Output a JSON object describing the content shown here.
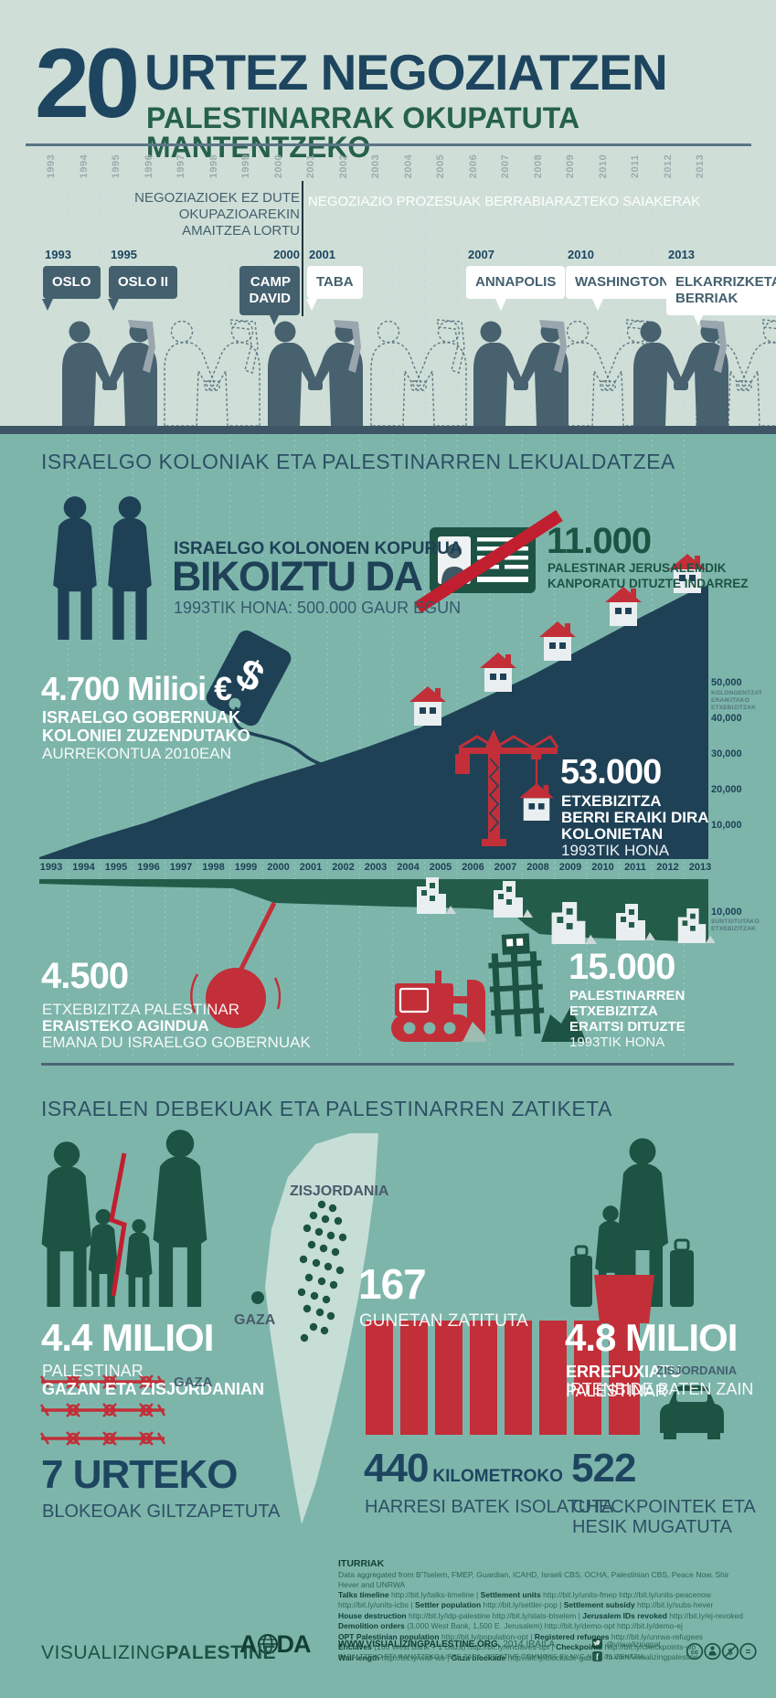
{
  "colors": {
    "bg_top": "#cfdfd7",
    "bg_teal": "#7db5ab",
    "navy": "#1e4156",
    "navy_text": "#1e4560",
    "slate": "#44606f",
    "green_dark": "#1d5343",
    "green_head": "#26614b",
    "red": "#c22f38",
    "map_light": "#c6ded6",
    "dash_blue": "#a6d8e3",
    "white": "#ffffff"
  },
  "header": {
    "number": "20",
    "title": "URTEZ NEGOZIATZEN",
    "subtitle": "PALESTINARRAK OKUPATUTA MANTENTZEKO"
  },
  "timeline": {
    "years": [
      "1993",
      "1994",
      "1995",
      "1996",
      "1997",
      "1998",
      "1999",
      "2000",
      "2001",
      "2002",
      "2003",
      "2004",
      "2005",
      "2006",
      "2007",
      "2008",
      "2009",
      "2010",
      "2011",
      "2012",
      "2013"
    ],
    "left_caption": "NEGOZIAZIOEK EZ DUTE OKUPAZIOAREKIN\nAMAITZEA LORTU",
    "right_caption": "NEGOZIAZIO PROZESUAK BERRABIARAZTEKO SAIAKERAK",
    "events": [
      {
        "year": "1993",
        "label": "OSLO",
        "theme": "dark"
      },
      {
        "year": "1995",
        "label": "OSLO II",
        "theme": "dark"
      },
      {
        "year": "2000",
        "label": "CAMP\nDAVID",
        "theme": "dark"
      },
      {
        "year": "2001",
        "label": "TABA",
        "theme": "light"
      },
      {
        "year": "2007",
        "label": "ANNAPOLIS",
        "theme": "light"
      },
      {
        "year": "2010",
        "label": "WASHINGTON",
        "theme": "light"
      },
      {
        "year": "2013",
        "label": "ELKARRIZKETA\nBERRIAK",
        "theme": "light"
      }
    ]
  },
  "section_settlements": {
    "heading": "ISRAELGO KOLONIAK ETA PALESTINARREN LEKUALDATZEA",
    "doubled": {
      "kicker": "ISRAELGO KOLONOEN KOPURUA",
      "big": "BIKOIZTU DA",
      "sub": "1993TIK HONA: 500.000 GAUR EGUN"
    },
    "ids": {
      "big": "11.000",
      "line1": "PALESTINAR JERUSALEMDIK",
      "line2": "KANPORATU DITUZTE INDARREZ"
    },
    "budget": {
      "big": "4.700 Milioi €",
      "line1": "ISRAELGO GOBERNUAK",
      "line2": "KOLONIEI ZUZENDUTAKO",
      "line3": "AURREKONTUA 2010EAN"
    },
    "built": {
      "big": "53.000",
      "line1": "ETXEBIZITZA",
      "line2": "BERRI ERAIKI DIRA",
      "line3": "KOLONIETAN",
      "line4": "1993TIK HONA"
    },
    "axis_upper": {
      "labels": [
        "50,000",
        "40,000",
        "30,000",
        "20,000",
        "10,000"
      ],
      "caption": "KOLONOENTZAT ERAIKITAKO ETXEBIZITZAK"
    },
    "axis_lower": {
      "label": "10,000",
      "caption": "SUNTSITUTAKO ETXEBIZITZAK"
    },
    "demolition_order": {
      "big": "4.500",
      "line1": "ETXEBIZITZA PALESTINAR",
      "line2": "ERAISTEKO AGINDUA",
      "line3": "EMANA DU ISRAELGO GOBERNUAK"
    },
    "demolished": {
      "big": "15.000",
      "line1": "PALESTINARREN",
      "line2": "ETXEBIZITZA",
      "line3": "ERAITSI DITUZTE",
      "line4": "1993TIK HONA"
    }
  },
  "section_division": {
    "heading": "ISRAELEN DEBEKUAK ETA PALESTINARREN ZATIKETA",
    "population": {
      "big": "4.4 MILIOI",
      "line1": "PALESTINAR",
      "line2": "GAZAN ETA ZISJORDANIAN"
    },
    "map": {
      "westbank_label": "ZISJORDANIA",
      "gaza_label": "GAZA"
    },
    "enclaves": {
      "big": "167",
      "sub": "GUNETAN ZATITUTA"
    },
    "refugees": {
      "big": "4.8 MILIOI",
      "line1_bold": "ERREFUXIATU",
      "line1_rest": " PALESTINAR",
      "line2": "IRTENBIDE BATEN ZAIN"
    },
    "blockade": {
      "gaza_label": "GAZA",
      "big": "7 URTEKO",
      "sub": "BLOKEOAK GILTZAPETUTA"
    },
    "wall": {
      "zisjordania_label": "ZISJORDANIA",
      "big": "440",
      "big_suffix": "KILOMETROKO",
      "sub": "HARRESI BATEK ISOLATUTA"
    },
    "checkpoints": {
      "big": "522",
      "line1": "CHECKPOINTEK ETA",
      "line2": "HESIK MUGATUTA"
    }
  },
  "footer": {
    "sources_title": "ITURRIAK",
    "sources_note": "Data aggregated from B'Tselem, FMEP, Guardian, ICAHD, Israeli CBS, OCHA, Palestinian CBS, Peace Now, Shir Hever and UNRWA",
    "source_lines": [
      "**Talks timeline** http://bit.ly/talks-timeline | **Settlement units** http://bit.ly/units-fmep http://bit.ly/units-peacenow",
      "http://bit.ly/units-icbs | **Settler population** http://bit.ly/settler-pop | **Settlement subsidy** http://bit.ly/subs-hever",
      "**House destruction** http://bit.ly/idp-palestine http://bit.ly/stats-btselem | **Jerusalem IDs revoked** http://bit.ly/ej-revoked",
      "**Demolition orders** (3,000 West Bank, 1,500 E. Jerusalem) http://bit.ly/demo-opt http://bit.ly/demo-ej",
      "**OPT Palestinian population** http://bit.ly/population-opt | **Registered refugees** http://bit.ly/unrwa-refugees",
      "**Enclaves** (166 West Bank + 1 Gaza) http://bit.ly/enclaves-opt | **Checkpoints** http://bit.ly/checkpoints-wb",
      "**Wall length** http://bit.ly/wall-wb | **Gaza blockade** http://bit.ly/blockade-gaza"
    ],
    "brand_light": "VISUALIZING",
    "brand_bold": "PALESTINE",
    "aida_a": "A",
    "aida_da": "DA",
    "site_bold": "WWW.VISUALIZINGPALESTINE.ORG.",
    "site_rest": " 2014 IRAILA",
    "license": "ZABALTZEKO ETA BANATZEKO LIBRE ZARA, CREATIVE COMMONS BY-NYC-ND 3.0 LIZENTZIA",
    "twitter": "@visualizingpal",
    "facebook": "fb.com/visualizingpalestine"
  },
  "chart_data": {
    "type": "area",
    "title": "Israelgo koloniak eta palestinarren lekualdatzea (1993-2013)",
    "x": [
      1993,
      1994,
      1995,
      1996,
      1997,
      1998,
      1999,
      2000,
      2001,
      2002,
      2003,
      2004,
      2005,
      2006,
      2007,
      2008,
      2009,
      2010,
      2011,
      2012,
      2013
    ],
    "series": [
      {
        "name": "Kolonoentzat eraikitako etxebizitzak (metatua)",
        "color": "#1e4156",
        "axis": "upper",
        "values": [
          1000,
          3500,
          6500,
          10000,
          13500,
          17000,
          20000,
          23000,
          25500,
          28000,
          30500,
          33000,
          35500,
          38000,
          40500,
          43000,
          45500,
          48000,
          50000,
          51500,
          53000
        ]
      },
      {
        "name": "Suntsitutako etxebizitzak (metatua, beherantz marraztua)",
        "color": "#235c48",
        "axis": "lower_inverted",
        "values": [
          700,
          1000,
          1300,
          1700,
          2100,
          2500,
          3200,
          4500,
          4800,
          5100,
          5400,
          5700,
          6000,
          6300,
          6700,
          7100,
          9500,
          10300,
          11200,
          12500,
          15000
        ]
      }
    ],
    "y_axis_upper": {
      "ticks": [
        10000,
        20000,
        30000,
        40000,
        50000
      ],
      "label": "KOLONOENTZAT ERAIKITAKO ETXEBIZITZAK"
    },
    "y_axis_lower": {
      "ticks": [
        10000
      ],
      "label": "SUNTSITUTAKO ETXEBIZITZAK"
    },
    "annotations": [
      "53.000 etxebizitza berri eraiki dira kolonietan 1993tik hona",
      "15.000 palestinarren etxebizitza eraitsi dituzte 1993tik hona",
      "4.700 Milioi € Israelgo gobernuak koloniei zuzendutako aurrekontua 2010ean",
      "4.500 etxebizitza palestinar eraisteko agindua emana du Israelgo gobernuak",
      "11.000 palestinar Jerusalemdik kanporatu dituzte indarrez"
    ],
    "legend_position": "none",
    "grid": false
  }
}
